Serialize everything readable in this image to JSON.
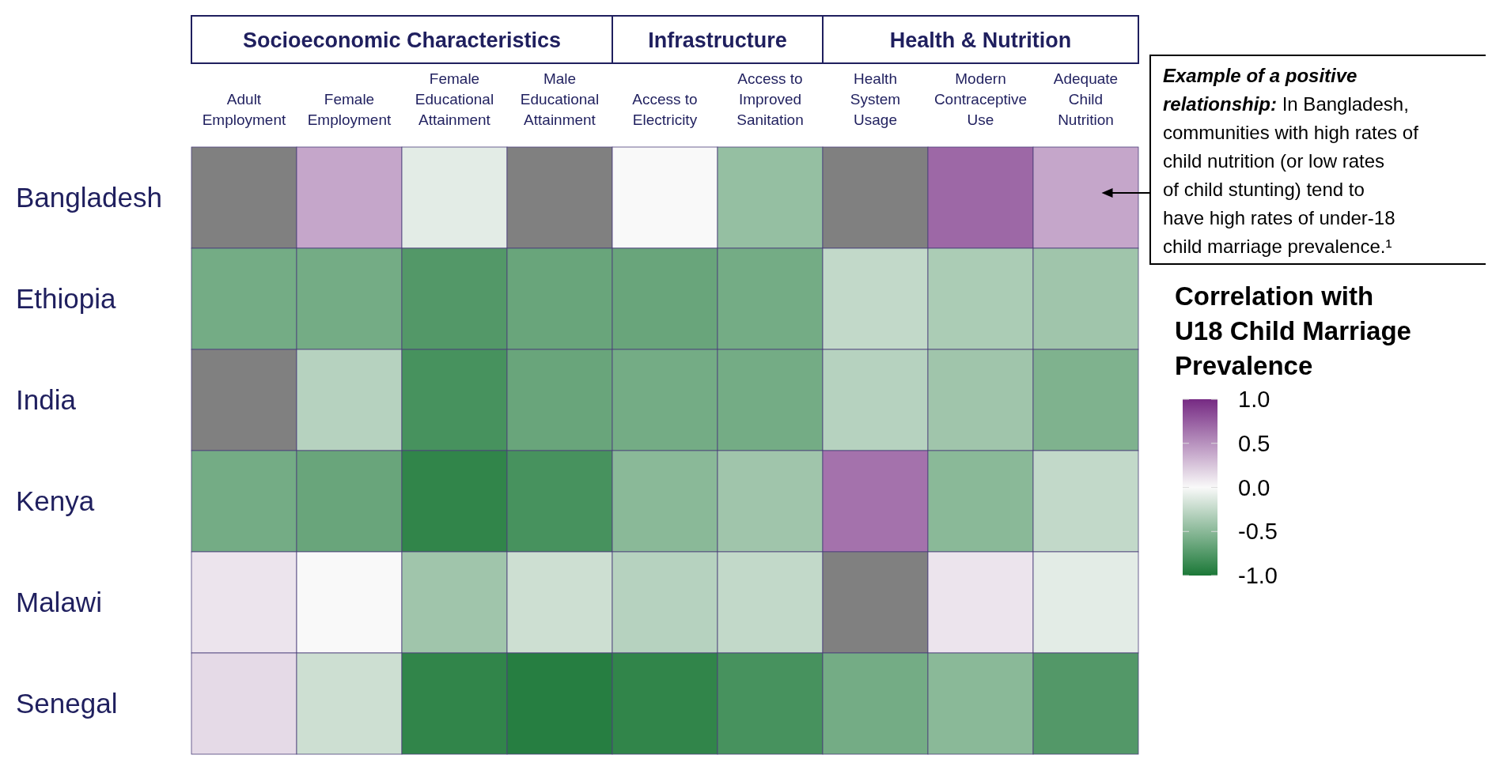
{
  "chart_data": {
    "type": "heatmap",
    "categories": [
      "Adult Employment",
      "Female Employment",
      "Female Educational Attainment",
      "Male Educational Attainment",
      "Access to Electricity",
      "Access to Improved Sanitation",
      "Health System Usage",
      "Modern Contraceptive Use",
      "Adequate Child Nutrition"
    ],
    "y_categories": [
      "Bangladesh",
      "Ethiopia",
      "India",
      "Kenya",
      "Malawi",
      "Senegal"
    ],
    "cells": [
      [
        null,
        0.4,
        -0.1,
        null,
        0.0,
        -0.45,
        null,
        0.7,
        0.4
      ],
      [
        -0.6,
        -0.6,
        -0.75,
        -0.65,
        -0.65,
        -0.6,
        -0.25,
        -0.35,
        -0.4
      ],
      [
        null,
        -0.3,
        -0.8,
        -0.65,
        -0.6,
        -0.6,
        -0.3,
        -0.4,
        -0.55
      ],
      [
        -0.6,
        -0.65,
        -0.9,
        -0.8,
        -0.5,
        -0.4,
        0.65,
        -0.5,
        -0.25
      ],
      [
        0.1,
        0.0,
        -0.4,
        -0.2,
        -0.3,
        -0.25,
        null,
        0.1,
        -0.1
      ],
      [
        0.15,
        -0.2,
        -0.9,
        -0.95,
        -0.9,
        -0.8,
        -0.6,
        -0.5,
        -0.75
      ]
    ],
    "clim": [
      -1,
      1
    ],
    "cticks": [
      {
        "value": 1,
        "label": "1.0"
      },
      {
        "value": 0.5,
        "label": "0.5"
      },
      {
        "value": 0,
        "label": "0.0"
      },
      {
        "value": -0.5,
        "label": "-0.5"
      },
      {
        "value": -1,
        "label": "-1.0"
      }
    ],
    "clabel": "Correlation with U18 Child Marriage Prevalence",
    "annotations": [
      "Socioeconomic Characteristics",
      "Infrastructure",
      "Health & Nutrition",
      "Example of a positive relationship: In Bangladesh, communities with high rates of child nutrition (or low rates of child stunting) tend to have high rates of under-18 child marriage prevalence.¹"
    ]
  }
}
